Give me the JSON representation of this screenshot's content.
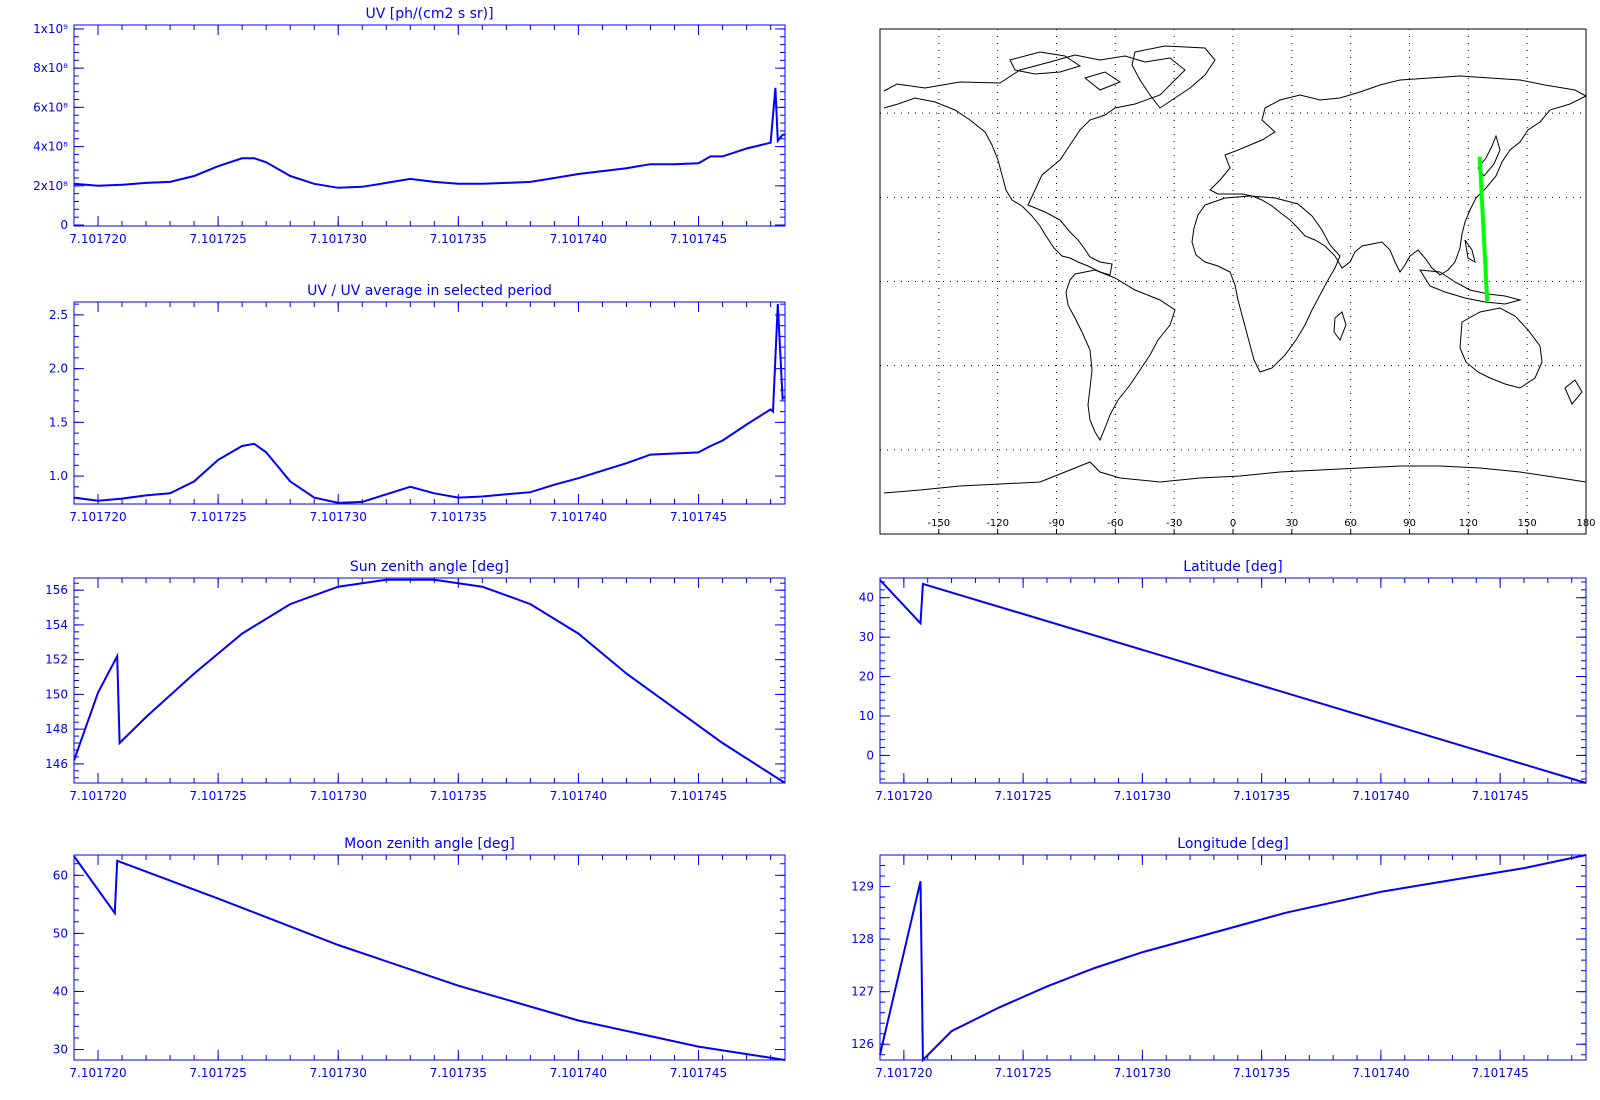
{
  "colors": {
    "axis": "#0000ff",
    "line": "#0000ff",
    "track": "#00ff00",
    "coast": "#000000",
    "grid": "#000000"
  },
  "chart_data": [
    {
      "id": "uv",
      "type": "line",
      "title": "UV [ph/(cm2 s sr)]",
      "xlim": [
        7.101719,
        7.1017486
      ],
      "ylim": [
        -5000000.0,
        1020000000.0
      ],
      "x_ticks": [
        {
          "value": 7.10172,
          "label": "7.101720"
        },
        {
          "value": 7.101725,
          "label": "7.101725"
        },
        {
          "value": 7.10173,
          "label": "7.101730"
        },
        {
          "value": 7.101735,
          "label": "7.101735"
        },
        {
          "value": 7.10174,
          "label": "7.101740"
        },
        {
          "value": 7.101745,
          "label": "7.101745"
        }
      ],
      "y_ticks": [
        {
          "value": 0,
          "label": "0"
        },
        {
          "value": 200000000.0,
          "label": "2x10⁸"
        },
        {
          "value": 400000000.0,
          "label": "4x10⁸"
        },
        {
          "value": 600000000.0,
          "label": "6x10⁸"
        },
        {
          "value": 800000000.0,
          "label": "8x10⁸"
        },
        {
          "value": 1000000000.0,
          "label": "1x10⁹"
        }
      ],
      "series": [
        {
          "x": [
            7.101719,
            7.10172,
            7.101721,
            7.101722,
            7.101723,
            7.101724,
            7.101725,
            7.101726,
            7.1017265,
            7.101727,
            7.101728,
            7.101729,
            7.10173,
            7.101731,
            7.101732,
            7.101733,
            7.101734,
            7.101735,
            7.101736,
            7.101737,
            7.101738,
            7.101739,
            7.10174,
            7.101741,
            7.101742,
            7.101743,
            7.101744,
            7.101745,
            7.1017455,
            7.101746,
            7.101747,
            7.101748,
            7.1017482,
            7.1017483,
            7.1017485,
            7.1017486
          ],
          "y": [
            210000000.0,
            200000000.0,
            205000000.0,
            215000000.0,
            220000000.0,
            250000000.0,
            300000000.0,
            340000000.0,
            340000000.0,
            320000000.0,
            250000000.0,
            210000000.0,
            190000000.0,
            195000000.0,
            215000000.0,
            235000000.0,
            220000000.0,
            210000000.0,
            210000000.0,
            215000000.0,
            220000000.0,
            240000000.0,
            260000000.0,
            275000000.0,
            290000000.0,
            310000000.0,
            310000000.0,
            315000000.0,
            350000000.0,
            350000000.0,
            390000000.0,
            420000000.0,
            700000000.0,
            430000000.0,
            460000000.0,
            460000000.0
          ]
        }
      ]
    },
    {
      "id": "uv-ratio",
      "type": "line",
      "title": "UV / UV average in selected period",
      "xlim": [
        7.101719,
        7.1017486
      ],
      "ylim": [
        0.74,
        2.62
      ],
      "x_ticks": [
        {
          "value": 7.10172,
          "label": "7.101720"
        },
        {
          "value": 7.101725,
          "label": "7.101725"
        },
        {
          "value": 7.10173,
          "label": "7.101730"
        },
        {
          "value": 7.101735,
          "label": "7.101735"
        },
        {
          "value": 7.10174,
          "label": "7.101740"
        },
        {
          "value": 7.101745,
          "label": "7.101745"
        }
      ],
      "y_ticks": [
        {
          "value": 1.0,
          "label": "1.0"
        },
        {
          "value": 1.5,
          "label": "1.5"
        },
        {
          "value": 2.0,
          "label": "2.0"
        },
        {
          "value": 2.5,
          "label": "2.5"
        }
      ],
      "series": [
        {
          "x": [
            7.101719,
            7.10172,
            7.101721,
            7.101722,
            7.101723,
            7.101724,
            7.101725,
            7.101726,
            7.1017265,
            7.101727,
            7.101728,
            7.101729,
            7.10173,
            7.101731,
            7.101732,
            7.101733,
            7.101734,
            7.101735,
            7.101736,
            7.101737,
            7.101738,
            7.101739,
            7.10174,
            7.101741,
            7.101742,
            7.101743,
            7.101744,
            7.101745,
            7.1017455,
            7.101746,
            7.101747,
            7.101748,
            7.1017481,
            7.1017483,
            7.1017485,
            7.1017486
          ],
          "y": [
            0.8,
            0.77,
            0.79,
            0.82,
            0.84,
            0.95,
            1.15,
            1.28,
            1.3,
            1.22,
            0.95,
            0.8,
            0.75,
            0.76,
            0.83,
            0.9,
            0.84,
            0.8,
            0.81,
            0.83,
            0.85,
            0.92,
            0.98,
            1.05,
            1.12,
            1.2,
            1.21,
            1.22,
            1.28,
            1.33,
            1.48,
            1.62,
            1.6,
            2.6,
            1.72,
            1.74
          ]
        }
      ]
    },
    {
      "id": "sun-zenith",
      "type": "line",
      "title": "Sun zenith angle [deg]",
      "xlim": [
        7.101719,
        7.1017486
      ],
      "ylim": [
        144.9,
        156.7
      ],
      "x_ticks": [
        {
          "value": 7.10172,
          "label": "7.101720"
        },
        {
          "value": 7.101725,
          "label": "7.101725"
        },
        {
          "value": 7.10173,
          "label": "7.101730"
        },
        {
          "value": 7.101735,
          "label": "7.101735"
        },
        {
          "value": 7.10174,
          "label": "7.101740"
        },
        {
          "value": 7.101745,
          "label": "7.101745"
        }
      ],
      "y_ticks": [
        {
          "value": 146,
          "label": "146"
        },
        {
          "value": 148,
          "label": "148"
        },
        {
          "value": 150,
          "label": "150"
        },
        {
          "value": 152,
          "label": "152"
        },
        {
          "value": 154,
          "label": "154"
        },
        {
          "value": 156,
          "label": "156"
        }
      ],
      "series": [
        {
          "x": [
            7.101719,
            7.10172,
            7.1017208,
            7.1017209,
            7.101722,
            7.101724,
            7.101726,
            7.101728,
            7.10173,
            7.101732,
            7.101734,
            7.101736,
            7.101738,
            7.10174,
            7.101742,
            7.101744,
            7.101746,
            7.1017486
          ],
          "y": [
            146.2,
            150.1,
            152.2,
            147.2,
            148.7,
            151.2,
            153.5,
            155.2,
            156.2,
            156.6,
            156.6,
            156.2,
            155.2,
            153.5,
            151.2,
            149.2,
            147.2,
            144.9
          ]
        }
      ]
    },
    {
      "id": "latitude",
      "type": "line",
      "title": "Latitude [deg]",
      "xlim": [
        7.101719,
        7.1017486
      ],
      "ylim": [
        -7,
        45
      ],
      "x_ticks": [
        {
          "value": 7.10172,
          "label": "7.101720"
        },
        {
          "value": 7.101725,
          "label": "7.101725"
        },
        {
          "value": 7.10173,
          "label": "7.101730"
        },
        {
          "value": 7.101735,
          "label": "7.101735"
        },
        {
          "value": 7.10174,
          "label": "7.101740"
        },
        {
          "value": 7.101745,
          "label": "7.101745"
        }
      ],
      "y_ticks": [
        {
          "value": 0,
          "label": "0"
        },
        {
          "value": 10,
          "label": "10"
        },
        {
          "value": 20,
          "label": "20"
        },
        {
          "value": 30,
          "label": "30"
        },
        {
          "value": 40,
          "label": "40"
        }
      ],
      "series": [
        {
          "x": [
            7.101719,
            7.1017207,
            7.1017208,
            7.1017486
          ],
          "y": [
            44.5,
            33.5,
            43.5,
            -7.0
          ]
        }
      ]
    },
    {
      "id": "moon-zenith",
      "type": "line",
      "title": "Moon zenith angle [deg]",
      "xlim": [
        7.101719,
        7.1017486
      ],
      "ylim": [
        28.2,
        63.5
      ],
      "x_ticks": [
        {
          "value": 7.10172,
          "label": "7.101720"
        },
        {
          "value": 7.101725,
          "label": "7.101725"
        },
        {
          "value": 7.10173,
          "label": "7.101730"
        },
        {
          "value": 7.101735,
          "label": "7.101735"
        },
        {
          "value": 7.10174,
          "label": "7.101740"
        },
        {
          "value": 7.101745,
          "label": "7.101745"
        }
      ],
      "y_ticks": [
        {
          "value": 30,
          "label": "30"
        },
        {
          "value": 40,
          "label": "40"
        },
        {
          "value": 50,
          "label": "50"
        },
        {
          "value": 60,
          "label": "60"
        }
      ],
      "series": [
        {
          "x": [
            7.101719,
            7.1017207,
            7.1017208,
            7.101725,
            7.10173,
            7.101735,
            7.10174,
            7.101745,
            7.1017486
          ],
          "y": [
            63.3,
            53.5,
            62.5,
            56.0,
            48.0,
            41.0,
            35.0,
            30.5,
            28.2
          ]
        }
      ]
    },
    {
      "id": "longitude",
      "type": "line",
      "title": "Longitude [deg]",
      "xlim": [
        7.101719,
        7.1017486
      ],
      "ylim": [
        125.7,
        129.6
      ],
      "x_ticks": [
        {
          "value": 7.10172,
          "label": "7.101720"
        },
        {
          "value": 7.101725,
          "label": "7.101725"
        },
        {
          "value": 7.10173,
          "label": "7.101730"
        },
        {
          "value": 7.101735,
          "label": "7.101735"
        },
        {
          "value": 7.10174,
          "label": "7.101740"
        },
        {
          "value": 7.101745,
          "label": "7.101745"
        }
      ],
      "y_ticks": [
        {
          "value": 126,
          "label": "126"
        },
        {
          "value": 127,
          "label": "127"
        },
        {
          "value": 128,
          "label": "128"
        },
        {
          "value": 129,
          "label": "129"
        }
      ],
      "series": [
        {
          "x": [
            7.101719,
            7.1017207,
            7.1017208,
            7.101722,
            7.101724,
            7.101726,
            7.101728,
            7.10173,
            7.101732,
            7.101734,
            7.101736,
            7.101738,
            7.10174,
            7.101742,
            7.101744,
            7.101746,
            7.1017486
          ],
          "y": [
            125.8,
            129.1,
            125.7,
            126.25,
            126.7,
            127.1,
            127.45,
            127.75,
            128.0,
            128.25,
            128.5,
            128.7,
            128.9,
            129.05,
            129.2,
            129.35,
            129.6
          ]
        }
      ]
    },
    {
      "id": "map",
      "type": "map",
      "projection": "equirectangular",
      "lon_range": [
        -180,
        180
      ],
      "lat_range": [
        -90,
        90
      ],
      "x_ticks": [
        {
          "value": -150,
          "label": "-150"
        },
        {
          "value": -120,
          "label": "-120"
        },
        {
          "value": -90,
          "label": "-90"
        },
        {
          "value": -60,
          "label": "-60"
        },
        {
          "value": -30,
          "label": "-30"
        },
        {
          "value": 0,
          "label": "0"
        },
        {
          "value": 30,
          "label": "30"
        },
        {
          "value": 60,
          "label": "60"
        },
        {
          "value": 90,
          "label": "90"
        },
        {
          "value": 120,
          "label": "120"
        },
        {
          "value": 150,
          "label": "150"
        },
        {
          "value": 180,
          "label": "180"
        }
      ],
      "track": {
        "lon": [
          125.8,
          129.6
        ],
        "lat": [
          44.5,
          -7.0
        ]
      }
    }
  ]
}
